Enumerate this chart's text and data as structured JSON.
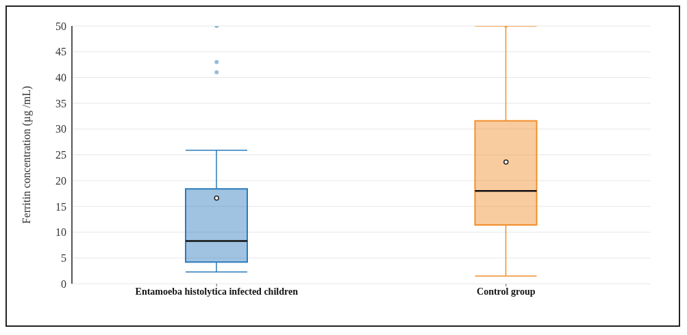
{
  "chart_data": {
    "type": "box",
    "ylabel": "Ferritin concentration (µg /mL)",
    "categories": [
      "Entamoeba histolytica infected children",
      "Control group"
    ],
    "colors": [
      "#2b7bba",
      "#f28e2b"
    ],
    "boxes": [
      {
        "low": 2.3,
        "q1": 4.2,
        "median": 8.3,
        "q3": 18.4,
        "high": 25.9,
        "mean": 16.6,
        "outliers": [
          41,
          43,
          50
        ]
      },
      {
        "low": 1.5,
        "q1": 11.4,
        "median": 18,
        "q3": 31.6,
        "high": 50,
        "mean": 23.6,
        "outliers": [
          50
        ]
      }
    ],
    "ylim": [
      0,
      50
    ],
    "yticks": [
      0,
      5,
      10,
      15,
      20,
      25,
      30,
      35,
      40,
      45,
      50
    ],
    "grid": "y"
  }
}
